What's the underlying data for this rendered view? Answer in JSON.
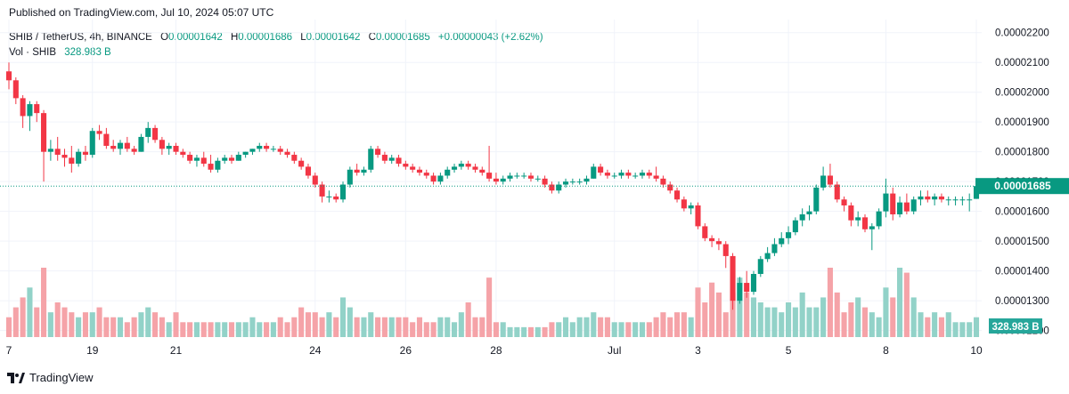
{
  "header": {
    "published": "Published on TradingView.com, Jul 10, 2024 05:07 UTC"
  },
  "legend": {
    "symbol": "SHIB / TetherUS, 4h, BINANCE",
    "o_label": "O",
    "o_value": "0.00001642",
    "h_label": "H",
    "h_value": "0.00001686",
    "l_label": "L",
    "l_value": "0.00001642",
    "c_label": "C",
    "c_value": "0.00001685",
    "change": "+0.00000043 (+2.62%)",
    "vol_label": "Vol · SHIB",
    "vol_value": "328.983 B"
  },
  "price_badge": "0.00001685",
  "volume_badge": "328.983 B",
  "footer": {
    "brand": "TradingView"
  },
  "colors": {
    "up": "#089981",
    "down": "#f23645",
    "vol_up": "#92d2c8",
    "vol_down": "#f5a3a8"
  },
  "chart_data": {
    "type": "candlestick",
    "title": "SHIB / TetherUS, 4h, BINANCE",
    "ylim": [
      1.19e-05,
      2.22e-05
    ],
    "y_ticks": [
      "0.00002200",
      "0.00002100",
      "0.00002000",
      "0.00001900",
      "0.00001800",
      "0.00001700",
      "0.00001600",
      "0.00001500",
      "0.00001400",
      "0.00001300",
      "0.00001200"
    ],
    "x_ticks": [
      "7",
      "19",
      "21",
      "24",
      "26",
      "28",
      "Jul",
      "3",
      "5",
      "8",
      "10"
    ],
    "last_price": 1.685e-05,
    "volume_unit": "B",
    "series": [
      {
        "o": 2.07,
        "h": 2.1,
        "l": 2.01,
        "c": 2.04
      },
      {
        "o": 2.04,
        "h": 2.05,
        "l": 1.96,
        "c": 1.98
      },
      {
        "o": 1.98,
        "h": 1.99,
        "l": 1.88,
        "c": 1.92
      },
      {
        "o": 1.92,
        "h": 1.97,
        "l": 1.87,
        "c": 1.96
      },
      {
        "o": 1.96,
        "h": 1.97,
        "l": 1.9,
        "c": 1.93
      },
      {
        "o": 1.93,
        "h": 1.94,
        "l": 1.7,
        "c": 1.8
      },
      {
        "o": 1.8,
        "h": 1.84,
        "l": 1.77,
        "c": 1.81
      },
      {
        "o": 1.81,
        "h": 1.85,
        "l": 1.77,
        "c": 1.79
      },
      {
        "o": 1.79,
        "h": 1.81,
        "l": 1.75,
        "c": 1.78
      },
      {
        "o": 1.78,
        "h": 1.82,
        "l": 1.73,
        "c": 1.76
      },
      {
        "o": 1.76,
        "h": 1.81,
        "l": 1.75,
        "c": 1.8
      },
      {
        "o": 1.8,
        "h": 1.82,
        "l": 1.77,
        "c": 1.79
      },
      {
        "o": 1.79,
        "h": 1.88,
        "l": 1.78,
        "c": 1.87
      },
      {
        "o": 1.87,
        "h": 1.89,
        "l": 1.84,
        "c": 1.86
      },
      {
        "o": 1.86,
        "h": 1.88,
        "l": 1.81,
        "c": 1.82
      },
      {
        "o": 1.82,
        "h": 1.84,
        "l": 1.8,
        "c": 1.81
      },
      {
        "o": 1.81,
        "h": 1.84,
        "l": 1.79,
        "c": 1.83
      },
      {
        "o": 1.83,
        "h": 1.85,
        "l": 1.8,
        "c": 1.81
      },
      {
        "o": 1.81,
        "h": 1.82,
        "l": 1.79,
        "c": 1.8
      },
      {
        "o": 1.8,
        "h": 1.86,
        "l": 1.8,
        "c": 1.85
      },
      {
        "o": 1.85,
        "h": 1.9,
        "l": 1.83,
        "c": 1.88
      },
      {
        "o": 1.88,
        "h": 1.89,
        "l": 1.83,
        "c": 1.84
      },
      {
        "o": 1.84,
        "h": 1.85,
        "l": 1.79,
        "c": 1.81
      },
      {
        "o": 1.81,
        "h": 1.83,
        "l": 1.79,
        "c": 1.82
      },
      {
        "o": 1.82,
        "h": 1.83,
        "l": 1.79,
        "c": 1.8
      },
      {
        "o": 1.8,
        "h": 1.81,
        "l": 1.78,
        "c": 1.79
      },
      {
        "o": 1.79,
        "h": 1.8,
        "l": 1.76,
        "c": 1.77
      },
      {
        "o": 1.77,
        "h": 1.79,
        "l": 1.75,
        "c": 1.78
      },
      {
        "o": 1.78,
        "h": 1.8,
        "l": 1.75,
        "c": 1.76
      },
      {
        "o": 1.76,
        "h": 1.79,
        "l": 1.73,
        "c": 1.74
      },
      {
        "o": 1.74,
        "h": 1.78,
        "l": 1.73,
        "c": 1.77
      },
      {
        "o": 1.77,
        "h": 1.79,
        "l": 1.76,
        "c": 1.78
      },
      {
        "o": 1.78,
        "h": 1.79,
        "l": 1.76,
        "c": 1.77
      },
      {
        "o": 1.77,
        "h": 1.8,
        "l": 1.77,
        "c": 1.79
      },
      {
        "o": 1.79,
        "h": 1.8,
        "l": 1.78,
        "c": 1.8
      },
      {
        "o": 1.8,
        "h": 1.81,
        "l": 1.79,
        "c": 1.81
      },
      {
        "o": 1.81,
        "h": 1.83,
        "l": 1.8,
        "c": 1.82
      },
      {
        "o": 1.82,
        "h": 1.83,
        "l": 1.8,
        "c": 1.81
      },
      {
        "o": 1.81,
        "h": 1.82,
        "l": 1.8,
        "c": 1.81
      },
      {
        "o": 1.81,
        "h": 1.82,
        "l": 1.79,
        "c": 1.8
      },
      {
        "o": 1.8,
        "h": 1.81,
        "l": 1.78,
        "c": 1.79
      },
      {
        "o": 1.79,
        "h": 1.8,
        "l": 1.76,
        "c": 1.77
      },
      {
        "o": 1.77,
        "h": 1.78,
        "l": 1.74,
        "c": 1.75
      },
      {
        "o": 1.75,
        "h": 1.76,
        "l": 1.71,
        "c": 1.72
      },
      {
        "o": 1.72,
        "h": 1.73,
        "l": 1.68,
        "c": 1.69
      },
      {
        "o": 1.69,
        "h": 1.7,
        "l": 1.63,
        "c": 1.65
      },
      {
        "o": 1.65,
        "h": 1.67,
        "l": 1.63,
        "c": 1.65
      },
      {
        "o": 1.65,
        "h": 1.66,
        "l": 1.63,
        "c": 1.64
      },
      {
        "o": 1.64,
        "h": 1.7,
        "l": 1.63,
        "c": 1.69
      },
      {
        "o": 1.69,
        "h": 1.75,
        "l": 1.68,
        "c": 1.74
      },
      {
        "o": 1.74,
        "h": 1.76,
        "l": 1.72,
        "c": 1.73
      },
      {
        "o": 1.73,
        "h": 1.75,
        "l": 1.72,
        "c": 1.74
      },
      {
        "o": 1.74,
        "h": 1.82,
        "l": 1.73,
        "c": 1.81
      },
      {
        "o": 1.81,
        "h": 1.82,
        "l": 1.78,
        "c": 1.79
      },
      {
        "o": 1.79,
        "h": 1.8,
        "l": 1.76,
        "c": 1.77
      },
      {
        "o": 1.77,
        "h": 1.79,
        "l": 1.76,
        "c": 1.78
      },
      {
        "o": 1.78,
        "h": 1.79,
        "l": 1.75,
        "c": 1.76
      },
      {
        "o": 1.76,
        "h": 1.77,
        "l": 1.74,
        "c": 1.75
      },
      {
        "o": 1.75,
        "h": 1.76,
        "l": 1.73,
        "c": 1.74
      },
      {
        "o": 1.74,
        "h": 1.75,
        "l": 1.72,
        "c": 1.73
      },
      {
        "o": 1.73,
        "h": 1.74,
        "l": 1.71,
        "c": 1.72
      },
      {
        "o": 1.72,
        "h": 1.73,
        "l": 1.69,
        "c": 1.7
      },
      {
        "o": 1.7,
        "h": 1.73,
        "l": 1.69,
        "c": 1.72
      },
      {
        "o": 1.72,
        "h": 1.75,
        "l": 1.71,
        "c": 1.74
      },
      {
        "o": 1.74,
        "h": 1.76,
        "l": 1.73,
        "c": 1.75
      },
      {
        "o": 1.75,
        "h": 1.77,
        "l": 1.74,
        "c": 1.76
      },
      {
        "o": 1.76,
        "h": 1.77,
        "l": 1.74,
        "c": 1.75
      },
      {
        "o": 1.75,
        "h": 1.76,
        "l": 1.73,
        "c": 1.74
      },
      {
        "o": 1.74,
        "h": 1.75,
        "l": 1.72,
        "c": 1.73
      },
      {
        "o": 1.73,
        "h": 1.82,
        "l": 1.7,
        "c": 1.71
      },
      {
        "o": 1.71,
        "h": 1.73,
        "l": 1.69,
        "c": 1.7
      },
      {
        "o": 1.7,
        "h": 1.72,
        "l": 1.69,
        "c": 1.71
      },
      {
        "o": 1.71,
        "h": 1.73,
        "l": 1.7,
        "c": 1.72
      },
      {
        "o": 1.72,
        "h": 1.73,
        "l": 1.71,
        "c": 1.72
      },
      {
        "o": 1.72,
        "h": 1.73,
        "l": 1.71,
        "c": 1.72
      },
      {
        "o": 1.72,
        "h": 1.73,
        "l": 1.7,
        "c": 1.71
      },
      {
        "o": 1.71,
        "h": 1.72,
        "l": 1.7,
        "c": 1.71
      },
      {
        "o": 1.71,
        "h": 1.72,
        "l": 1.68,
        "c": 1.69
      },
      {
        "o": 1.69,
        "h": 1.7,
        "l": 1.66,
        "c": 1.67
      },
      {
        "o": 1.67,
        "h": 1.7,
        "l": 1.66,
        "c": 1.69
      },
      {
        "o": 1.69,
        "h": 1.71,
        "l": 1.68,
        "c": 1.7
      },
      {
        "o": 1.7,
        "h": 1.71,
        "l": 1.69,
        "c": 1.7
      },
      {
        "o": 1.7,
        "h": 1.71,
        "l": 1.69,
        "c": 1.7
      },
      {
        "o": 1.7,
        "h": 1.72,
        "l": 1.69,
        "c": 1.71
      },
      {
        "o": 1.71,
        "h": 1.76,
        "l": 1.71,
        "c": 1.75
      },
      {
        "o": 1.75,
        "h": 1.76,
        "l": 1.72,
        "c": 1.73
      },
      {
        "o": 1.73,
        "h": 1.74,
        "l": 1.71,
        "c": 1.72
      },
      {
        "o": 1.72,
        "h": 1.73,
        "l": 1.71,
        "c": 1.72
      },
      {
        "o": 1.72,
        "h": 1.74,
        "l": 1.71,
        "c": 1.73
      },
      {
        "o": 1.73,
        "h": 1.74,
        "l": 1.71,
        "c": 1.72
      },
      {
        "o": 1.72,
        "h": 1.73,
        "l": 1.71,
        "c": 1.72
      },
      {
        "o": 1.72,
        "h": 1.74,
        "l": 1.71,
        "c": 1.73
      },
      {
        "o": 1.73,
        "h": 1.74,
        "l": 1.71,
        "c": 1.72
      },
      {
        "o": 1.72,
        "h": 1.75,
        "l": 1.7,
        "c": 1.71
      },
      {
        "o": 1.71,
        "h": 1.72,
        "l": 1.68,
        "c": 1.69
      },
      {
        "o": 1.69,
        "h": 1.7,
        "l": 1.66,
        "c": 1.67
      },
      {
        "o": 1.67,
        "h": 1.68,
        "l": 1.63,
        "c": 1.64
      },
      {
        "o": 1.64,
        "h": 1.65,
        "l": 1.6,
        "c": 1.61
      },
      {
        "o": 1.61,
        "h": 1.63,
        "l": 1.59,
        "c": 1.62
      },
      {
        "o": 1.62,
        "h": 1.63,
        "l": 1.54,
        "c": 1.55
      },
      {
        "o": 1.55,
        "h": 1.56,
        "l": 1.5,
        "c": 1.51
      },
      {
        "o": 1.51,
        "h": 1.52,
        "l": 1.48,
        "c": 1.5
      },
      {
        "o": 1.5,
        "h": 1.51,
        "l": 1.47,
        "c": 1.49
      },
      {
        "o": 1.49,
        "h": 1.5,
        "l": 1.41,
        "c": 1.45
      },
      {
        "o": 1.45,
        "h": 1.46,
        "l": 1.27,
        "c": 1.3
      },
      {
        "o": 1.3,
        "h": 1.38,
        "l": 1.29,
        "c": 1.36
      },
      {
        "o": 1.36,
        "h": 1.4,
        "l": 1.31,
        "c": 1.33
      },
      {
        "o": 1.33,
        "h": 1.4,
        "l": 1.32,
        "c": 1.39
      },
      {
        "o": 1.39,
        "h": 1.45,
        "l": 1.38,
        "c": 1.44
      },
      {
        "o": 1.44,
        "h": 1.48,
        "l": 1.43,
        "c": 1.46
      },
      {
        "o": 1.46,
        "h": 1.51,
        "l": 1.45,
        "c": 1.49
      },
      {
        "o": 1.49,
        "h": 1.53,
        "l": 1.48,
        "c": 1.51
      },
      {
        "o": 1.51,
        "h": 1.55,
        "l": 1.49,
        "c": 1.53
      },
      {
        "o": 1.53,
        "h": 1.58,
        "l": 1.52,
        "c": 1.57
      },
      {
        "o": 1.57,
        "h": 1.61,
        "l": 1.55,
        "c": 1.59
      },
      {
        "o": 1.59,
        "h": 1.62,
        "l": 1.57,
        "c": 1.6
      },
      {
        "o": 1.6,
        "h": 1.69,
        "l": 1.59,
        "c": 1.68
      },
      {
        "o": 1.68,
        "h": 1.75,
        "l": 1.67,
        "c": 1.72
      },
      {
        "o": 1.72,
        "h": 1.76,
        "l": 1.68,
        "c": 1.69
      },
      {
        "o": 1.69,
        "h": 1.7,
        "l": 1.63,
        "c": 1.64
      },
      {
        "o": 1.64,
        "h": 1.65,
        "l": 1.6,
        "c": 1.62
      },
      {
        "o": 1.62,
        "h": 1.63,
        "l": 1.55,
        "c": 1.57
      },
      {
        "o": 1.57,
        "h": 1.6,
        "l": 1.55,
        "c": 1.58
      },
      {
        "o": 1.58,
        "h": 1.59,
        "l": 1.53,
        "c": 1.54
      },
      {
        "o": 1.54,
        "h": 1.56,
        "l": 1.47,
        "c": 1.55
      },
      {
        "o": 1.55,
        "h": 1.61,
        "l": 1.54,
        "c": 1.6
      },
      {
        "o": 1.6,
        "h": 1.71,
        "l": 1.58,
        "c": 1.66
      },
      {
        "o": 1.66,
        "h": 1.68,
        "l": 1.57,
        "c": 1.59
      },
      {
        "o": 1.59,
        "h": 1.65,
        "l": 1.58,
        "c": 1.63
      },
      {
        "o": 1.63,
        "h": 1.66,
        "l": 1.59,
        "c": 1.6
      },
      {
        "o": 1.6,
        "h": 1.65,
        "l": 1.59,
        "c": 1.64
      },
      {
        "o": 1.64,
        "h": 1.67,
        "l": 1.62,
        "c": 1.65
      },
      {
        "o": 1.65,
        "h": 1.67,
        "l": 1.63,
        "c": 1.64
      },
      {
        "o": 1.64,
        "h": 1.66,
        "l": 1.62,
        "c": 1.65
      },
      {
        "o": 1.65,
        "h": 1.66,
        "l": 1.63,
        "c": 1.64
      },
      {
        "o": 1.64,
        "h": 1.65,
        "l": 1.62,
        "c": 1.64
      },
      {
        "o": 1.64,
        "h": 1.65,
        "l": 1.62,
        "c": 1.64
      },
      {
        "o": 1.64,
        "h": 1.65,
        "l": 1.62,
        "c": 1.64
      },
      {
        "o": 1.64,
        "h": 1.66,
        "l": 1.6,
        "c": 1.64
      },
      {
        "o": 1.642,
        "h": 1.686,
        "l": 1.642,
        "c": 1.685
      }
    ],
    "volume": [
      4,
      6,
      8,
      10,
      6,
      14,
      5,
      7,
      6,
      5,
      4,
      5,
      5,
      6,
      4,
      4,
      4,
      3,
      4,
      5,
      6,
      5,
      4,
      3,
      5,
      3,
      3,
      3,
      3,
      3,
      3,
      3,
      3,
      3,
      3,
      4,
      3,
      3,
      3,
      4,
      3,
      4,
      6,
      5,
      5,
      4,
      5,
      4,
      8,
      6,
      4,
      4,
      5,
      4,
      4,
      4,
      4,
      4,
      3,
      4,
      3,
      3,
      4,
      4,
      3,
      5,
      7,
      4,
      4,
      12,
      3,
      3,
      2,
      2,
      2,
      2,
      2,
      2,
      3,
      3,
      4,
      3,
      4,
      4,
      5,
      4,
      4,
      3,
      3,
      3,
      3,
      3,
      3,
      4,
      5,
      4,
      5,
      5,
      4,
      10,
      7,
      11,
      9,
      5,
      9,
      12,
      9,
      8,
      7,
      6,
      6,
      5,
      7,
      6,
      9,
      6,
      6,
      8,
      14,
      9,
      5,
      7,
      8,
      6,
      5,
      4,
      10,
      8,
      14,
      13,
      8,
      5,
      4,
      5,
      4,
      5,
      3,
      3,
      3,
      4
    ]
  }
}
